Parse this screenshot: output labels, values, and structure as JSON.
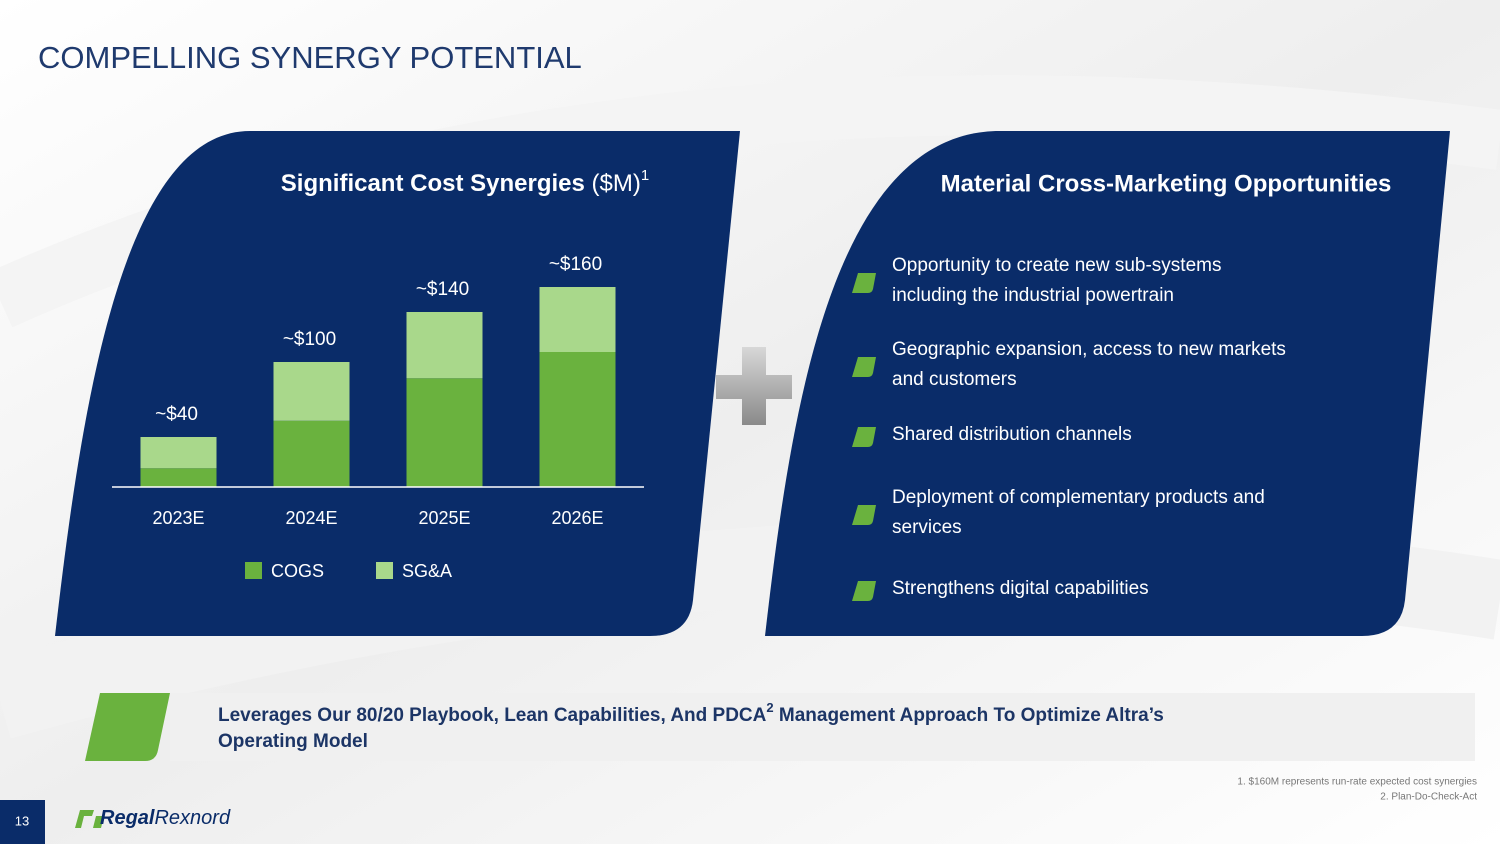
{
  "title": "COMPELLING SYNERGY POTENTIAL",
  "chart_data": {
    "type": "stacked_bar",
    "title_main": "Significant Cost Synergies",
    "title_unit": "($M)",
    "title_note": "1",
    "categories": [
      "2023E",
      "2024E",
      "2025E",
      "2026E"
    ],
    "series": [
      {
        "name": "COGS",
        "color": "#6ab23e",
        "values": [
          15,
          53,
          87,
          108
        ]
      },
      {
        "name": "SG&A",
        "color": "#a9d88b",
        "values": [
          25,
          47,
          53,
          52
        ]
      }
    ],
    "totals": [
      40,
      100,
      140,
      160
    ],
    "total_labels": [
      "~$40",
      "~$100",
      "~$140",
      "~$160"
    ],
    "ylim": [
      0,
      180
    ]
  },
  "cross_marketing": {
    "title": "Material Cross-Marketing Opportunities",
    "bullets": [
      {
        "lines": [
          "Opportunity to create new sub-systems",
          "including the industrial powertrain"
        ]
      },
      {
        "lines": [
          "Geographic expansion, access to new markets",
          "and customers"
        ]
      },
      {
        "lines": [
          "Shared distribution channels"
        ]
      },
      {
        "lines": [
          "Deployment of complementary products and",
          "services"
        ]
      },
      {
        "lines": [
          "Strengthens digital capabilities"
        ]
      }
    ]
  },
  "banner": {
    "line1_before": "Leverages Our 80/20 Playbook, Lean Capabilities, And PDCA",
    "note": "2",
    "line1_after": " Management Approach To Optimize Altra’s",
    "line2": "Operating Model"
  },
  "footnotes": [
    "1.  $160M represents run-rate expected cost synergies",
    "2. Plan-Do-Check-Act"
  ],
  "page_number": "13",
  "logo": {
    "part1": "Regal",
    "part2": "Rexnord"
  }
}
